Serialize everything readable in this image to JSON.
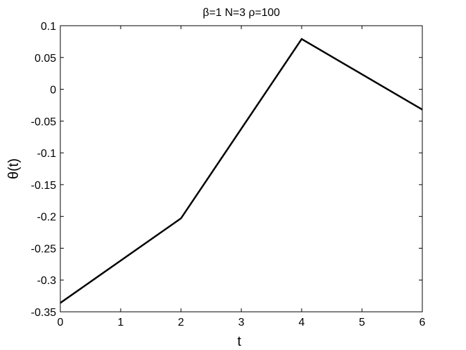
{
  "chart_data": {
    "type": "line",
    "title": "β=1 N=3 ρ=100",
    "xlabel": "t",
    "ylabel": "θ(t)",
    "xlim": [
      0,
      6
    ],
    "ylim": [
      -0.35,
      0.1
    ],
    "xticks": [
      0,
      1,
      2,
      3,
      4,
      5,
      6
    ],
    "xtick_labels": [
      "0",
      "1",
      "2",
      "3",
      "4",
      "5",
      "6"
    ],
    "yticks": [
      0.1,
      0.05,
      0,
      -0.05,
      -0.1,
      -0.15,
      -0.2,
      -0.25,
      -0.3,
      -0.35
    ],
    "ytick_labels": [
      "0.1",
      "0.05",
      "0",
      "-0.05",
      "-0.1",
      "-0.15",
      "-0.2",
      "-0.25",
      "-0.3",
      "-0.35"
    ],
    "grid": false,
    "series": [
      {
        "x": [
          0,
          2,
          4,
          6
        ],
        "y": [
          -0.336,
          -0.203,
          0.079,
          -0.032
        ],
        "color": "#000000"
      }
    ]
  }
}
